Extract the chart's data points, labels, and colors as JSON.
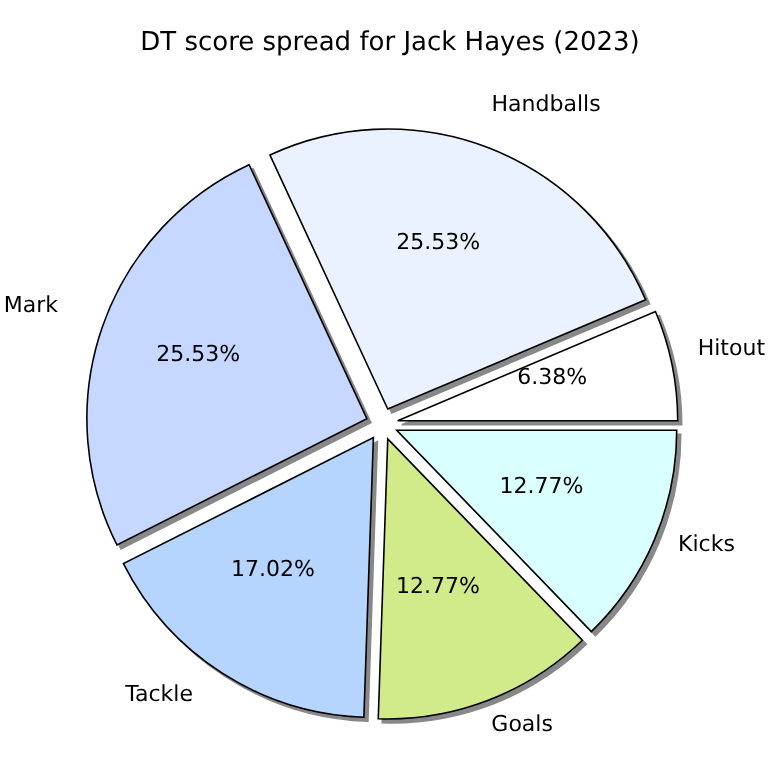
{
  "chart_data": {
    "type": "pie",
    "title": "DT score spread for Jack Hayes (2023)",
    "categories": [
      "Hitout",
      "Handballs",
      "Mark",
      "Tackle",
      "Goals",
      "Kicks"
    ],
    "values": [
      6.38,
      25.53,
      25.53,
      17.02,
      12.77,
      12.77
    ],
    "colors": [
      "#ffffff",
      "#eaf1ff",
      "#c6d8ff",
      "#b5d5ff",
      "#d1ea8a",
      "#daffff"
    ],
    "value_labels": [
      "6.38%",
      "25.53%",
      "25.53%",
      "17.02%",
      "12.77%",
      "12.77%"
    ],
    "legend": false
  }
}
